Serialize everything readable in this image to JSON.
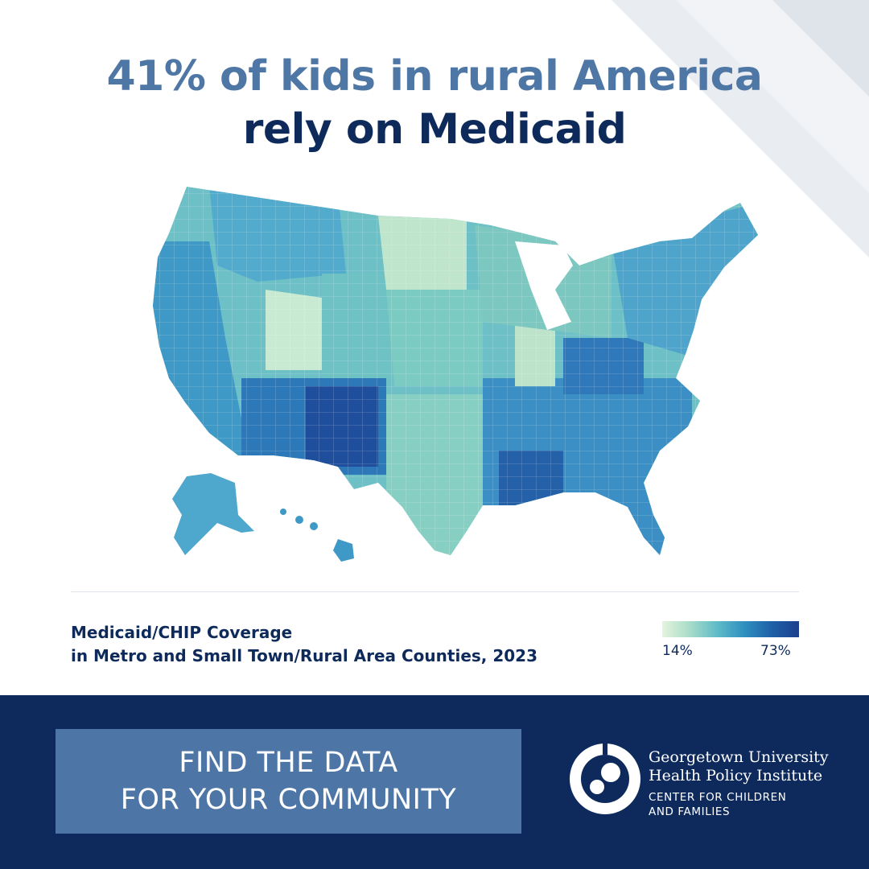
{
  "headline": {
    "line1": "41% of kids in rural America",
    "line2": "rely on Medicaid"
  },
  "legend": {
    "title_line1": "Medicaid/CHIP Coverage",
    "title_line2": "in Metro and Small Town/Rural Area Counties, 2023",
    "min_label": "14%",
    "max_label": "73%",
    "min_value": 14,
    "max_value": 73,
    "color_low": "#e4f4dd",
    "color_high": "#1d3f8c"
  },
  "map_regions": [
    {
      "name": "alaska",
      "level": 0.5
    },
    {
      "name": "hawaii",
      "level": 0.55
    },
    {
      "name": "new-mexico-arizona",
      "level": 0.85
    },
    {
      "name": "louisiana-mississippi",
      "level": 0.75
    },
    {
      "name": "kentucky-appalachia",
      "level": 0.7
    },
    {
      "name": "utah-dakotas",
      "level": 0.15
    },
    {
      "name": "illinois",
      "level": 0.2
    }
  ],
  "cta": {
    "line1": "FIND THE DATA",
    "line2": "FOR YOUR COMMUNITY"
  },
  "org": {
    "name_line1": "Georgetown University",
    "name_line2": "Health Policy Institute",
    "sub_line1": "CENTER FOR CHILDREN",
    "sub_line2": "AND FAMILIES"
  },
  "colors": {
    "navy": "#0e2a5c",
    "accent_blue": "#4f77a5",
    "cta_blue": "#4d76a6"
  }
}
